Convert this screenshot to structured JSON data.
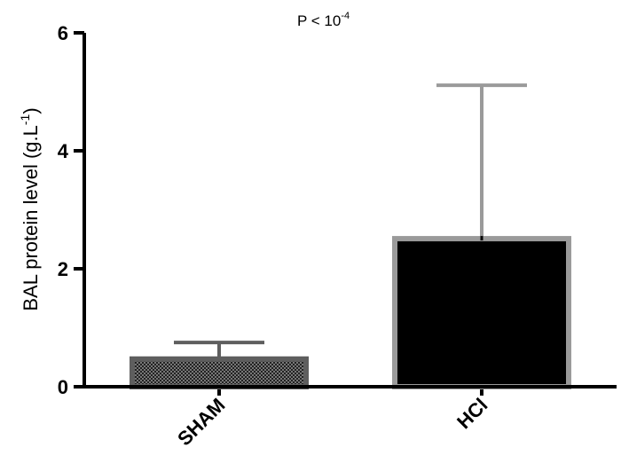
{
  "chart_data": {
    "type": "bar",
    "annotation": {
      "text": "P < 10",
      "superscript": "-4"
    },
    "y_label": {
      "text": "BAL protein level (g.L",
      "superscript": "-1",
      "suffix": ")"
    },
    "categories": [
      "SHAM",
      "HCl"
    ],
    "values": [
      0.47,
      2.51
    ],
    "errors": [
      0.28,
      2.6
    ],
    "colors": [
      "#3a3a3a",
      "#000000"
    ],
    "edge_colors": [
      "#5e5e5e",
      "#9a9a9a"
    ],
    "patterned": [
      true,
      false
    ],
    "ylim": [
      0,
      6
    ],
    "yticks": [
      0,
      2,
      4,
      6
    ]
  }
}
